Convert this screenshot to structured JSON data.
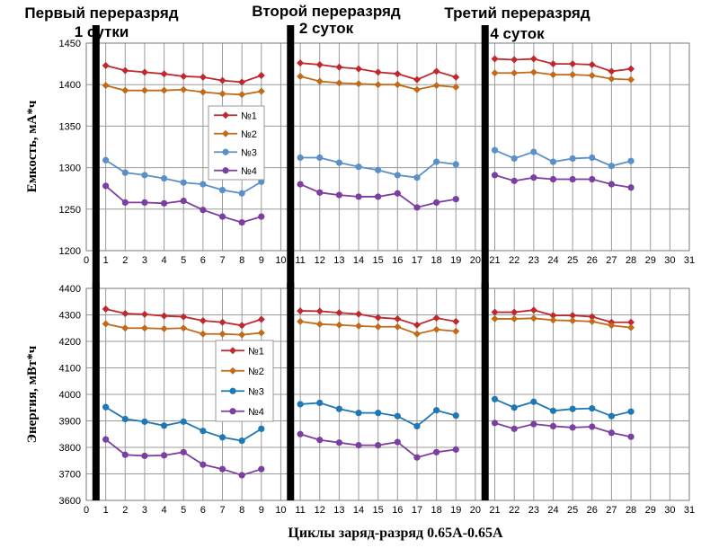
{
  "headers": [
    {
      "line1": "Первый переразряд",
      "line2": "1 сутки"
    },
    {
      "line1": "Второй переразряд",
      "line2": "2 суток"
    },
    {
      "line1": "Третий переразряд",
      "line2": "4 суток"
    }
  ],
  "xlabel": "Циклы заряд-разряд  0.65А-0.65А",
  "colors": {
    "n1": "#c0282d",
    "n2": "#c06a1a",
    "n3a": "#5b8fc7",
    "n3b": "#1f77b4",
    "n4": "#7b3fa0"
  },
  "chart_data": [
    {
      "type": "line",
      "ylabel": "Емкость, мА*ч",
      "ylim": [
        1200,
        1450
      ],
      "yticks": [
        1200,
        1250,
        1300,
        1350,
        1400,
        1450
      ],
      "xlim": [
        0,
        31
      ],
      "xticks": [
        0,
        1,
        2,
        3,
        4,
        5,
        6,
        7,
        8,
        9,
        10,
        11,
        12,
        13,
        14,
        15,
        16,
        17,
        18,
        19,
        20,
        21,
        22,
        23,
        24,
        25,
        26,
        27,
        28,
        29,
        30,
        31
      ],
      "grid": true,
      "legend": "center-left",
      "dividers_x": [
        0.5,
        10.5,
        20.5
      ],
      "series": [
        {
          "name": "№1",
          "color": "#c0282d",
          "marker": "diamond",
          "segments": [
            {
              "x": [
                1,
                2,
                3,
                4,
                5,
                6,
                7,
                8,
                9
              ],
              "y": [
                1423,
                1417,
                1415,
                1413,
                1410,
                1409,
                1405,
                1403,
                1411
              ]
            },
            {
              "x": [
                11,
                12,
                13,
                14,
                15,
                16,
                17,
                18,
                19
              ],
              "y": [
                1426,
                1424,
                1421,
                1419,
                1415,
                1413,
                1406,
                1416,
                1409
              ]
            },
            {
              "x": [
                21,
                22,
                23,
                24,
                25,
                26,
                27,
                28
              ],
              "y": [
                1431,
                1430,
                1431,
                1425,
                1425,
                1424,
                1416,
                1419
              ]
            }
          ]
        },
        {
          "name": "№2",
          "color": "#c06a1a",
          "marker": "diamond",
          "segments": [
            {
              "x": [
                1,
                2,
                3,
                4,
                5,
                6,
                7,
                8,
                9
              ],
              "y": [
                1399,
                1393,
                1393,
                1393,
                1394,
                1391,
                1389,
                1388,
                1392
              ]
            },
            {
              "x": [
                11,
                12,
                13,
                14,
                15,
                16,
                17,
                18,
                19
              ],
              "y": [
                1410,
                1404,
                1402,
                1401,
                1400,
                1400,
                1394,
                1399,
                1397
              ]
            },
            {
              "x": [
                21,
                22,
                23,
                24,
                25,
                26,
                27,
                28
              ],
              "y": [
                1414,
                1414,
                1415,
                1412,
                1412,
                1411,
                1407,
                1406
              ]
            }
          ]
        },
        {
          "name": "№3",
          "color": "#5b8fc7",
          "marker": "circle",
          "segments": [
            {
              "x": [
                1,
                2,
                3,
                4,
                5,
                6,
                7,
                8,
                9
              ],
              "y": [
                1309,
                1294,
                1291,
                1287,
                1282,
                1280,
                1273,
                1269,
                1283
              ]
            },
            {
              "x": [
                11,
                12,
                13,
                14,
                15,
                16,
                17,
                18,
                19
              ],
              "y": [
                1312,
                1312,
                1306,
                1301,
                1297,
                1291,
                1288,
                1307,
                1304
              ]
            },
            {
              "x": [
                21,
                22,
                23,
                24,
                25,
                26,
                27,
                28
              ],
              "y": [
                1321,
                1311,
                1319,
                1307,
                1311,
                1312,
                1302,
                1308
              ]
            }
          ]
        },
        {
          "name": "№4",
          "color": "#7b3fa0",
          "marker": "circle",
          "segments": [
            {
              "x": [
                1,
                2,
                3,
                4,
                5,
                6,
                7,
                8,
                9
              ],
              "y": [
                1278,
                1258,
                1258,
                1257,
                1260,
                1249,
                1241,
                1234,
                1241
              ]
            },
            {
              "x": [
                11,
                12,
                13,
                14,
                15,
                16,
                17,
                18,
                19
              ],
              "y": [
                1280,
                1270,
                1267,
                1265,
                1265,
                1269,
                1252,
                1258,
                1262
              ]
            },
            {
              "x": [
                21,
                22,
                23,
                24,
                25,
                26,
                27,
                28
              ],
              "y": [
                1291,
                1284,
                1288,
                1286,
                1286,
                1286,
                1280,
                1276
              ]
            }
          ]
        }
      ]
    },
    {
      "type": "line",
      "ylabel": "Энергия, мВт*ч",
      "ylim": [
        3600,
        4400
      ],
      "yticks": [
        3600,
        3700,
        3800,
        3900,
        4000,
        4100,
        4200,
        4300,
        4400
      ],
      "xlim": [
        0,
        31
      ],
      "xticks": [
        0,
        1,
        2,
        3,
        4,
        5,
        6,
        7,
        8,
        9,
        10,
        11,
        12,
        13,
        14,
        15,
        16,
        17,
        18,
        19,
        20,
        21,
        22,
        23,
        24,
        25,
        26,
        27,
        28,
        29,
        30,
        31
      ],
      "grid": true,
      "legend": "center-left",
      "dividers_x": [
        0.5,
        10.5,
        20.5
      ],
      "series": [
        {
          "name": "№1",
          "color": "#c0282d",
          "marker": "diamond",
          "segments": [
            {
              "x": [
                1,
                2,
                3,
                4,
                5,
                6,
                7,
                8,
                9
              ],
              "y": [
                4322,
                4305,
                4302,
                4296,
                4293,
                4278,
                4272,
                4260,
                4283
              ]
            },
            {
              "x": [
                11,
                12,
                13,
                14,
                15,
                16,
                17,
                18,
                19
              ],
              "y": [
                4315,
                4314,
                4308,
                4303,
                4290,
                4285,
                4262,
                4288,
                4275
              ]
            },
            {
              "x": [
                21,
                22,
                23,
                24,
                25,
                26,
                27,
                28
              ],
              "y": [
                4310,
                4310,
                4318,
                4298,
                4298,
                4293,
                4272,
                4272
              ]
            }
          ]
        },
        {
          "name": "№2",
          "color": "#c06a1a",
          "marker": "diamond",
          "segments": [
            {
              "x": [
                1,
                2,
                3,
                4,
                5,
                6,
                7,
                8,
                9
              ],
              "y": [
                4266,
                4250,
                4250,
                4248,
                4250,
                4228,
                4228,
                4225,
                4232
              ]
            },
            {
              "x": [
                11,
                12,
                13,
                14,
                15,
                16,
                17,
                18,
                19
              ],
              "y": [
                4275,
                4265,
                4262,
                4258,
                4255,
                4255,
                4228,
                4245,
                4238
              ]
            },
            {
              "x": [
                21,
                22,
                23,
                24,
                25,
                26,
                27,
                28
              ],
              "y": [
                4285,
                4285,
                4287,
                4280,
                4278,
                4275,
                4260,
                4252
              ]
            }
          ]
        },
        {
          "name": "№3",
          "color": "#1f77b4",
          "marker": "circle",
          "segments": [
            {
              "x": [
                1,
                2,
                3,
                4,
                5,
                6,
                7,
                8,
                9
              ],
              "y": [
                3952,
                3907,
                3897,
                3882,
                3897,
                3862,
                3838,
                3825,
                3870
              ]
            },
            {
              "x": [
                11,
                12,
                13,
                14,
                15,
                16,
                17,
                18,
                19
              ],
              "y": [
                3963,
                3968,
                3945,
                3930,
                3930,
                3918,
                3880,
                3940,
                3920
              ]
            },
            {
              "x": [
                21,
                22,
                23,
                24,
                25,
                26,
                27,
                28
              ],
              "y": [
                3982,
                3950,
                3972,
                3938,
                3945,
                3947,
                3918,
                3935
              ]
            }
          ]
        },
        {
          "name": "№4",
          "color": "#7b3fa0",
          "marker": "circle",
          "segments": [
            {
              "x": [
                1,
                2,
                3,
                4,
                5,
                6,
                7,
                8,
                9
              ],
              "y": [
                3830,
                3772,
                3768,
                3770,
                3782,
                3735,
                3718,
                3695,
                3718
              ]
            },
            {
              "x": [
                11,
                12,
                13,
                14,
                15,
                16,
                17,
                18,
                19
              ],
              "y": [
                3850,
                3828,
                3818,
                3808,
                3808,
                3820,
                3762,
                3782,
                3792
              ]
            },
            {
              "x": [
                21,
                22,
                23,
                24,
                25,
                26,
                27,
                28
              ],
              "y": [
                3892,
                3870,
                3888,
                3880,
                3875,
                3878,
                3855,
                3840
              ]
            }
          ]
        }
      ]
    }
  ]
}
